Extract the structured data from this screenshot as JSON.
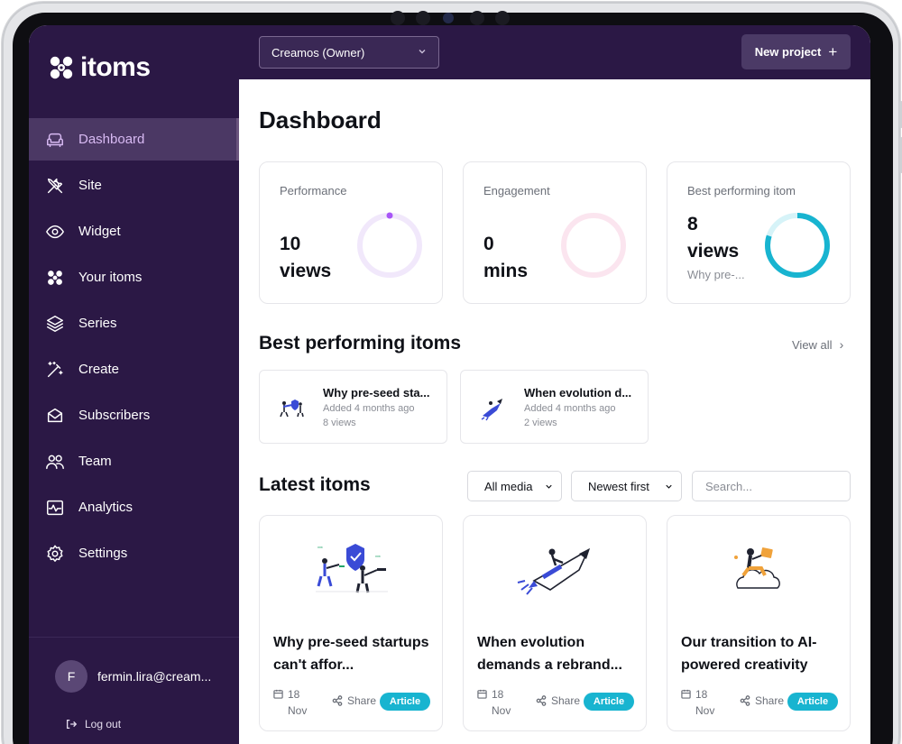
{
  "app": {
    "name": "itoms"
  },
  "topbar": {
    "org_select": "Creamos (Owner)",
    "new_project": "New project",
    "new_project_icon": "plus-icon"
  },
  "sidebar": {
    "items": [
      {
        "label": "Dashboard",
        "icon": "couch-icon",
        "active": true
      },
      {
        "label": "Site",
        "icon": "tools-icon"
      },
      {
        "label": "Widget",
        "icon": "eye-icon"
      },
      {
        "label": "Your itoms",
        "icon": "itoms-logo-icon"
      },
      {
        "label": "Series",
        "icon": "layers-icon"
      },
      {
        "label": "Create",
        "icon": "magic-wand-icon"
      },
      {
        "label": "Subscribers",
        "icon": "mail-icon"
      },
      {
        "label": "Team",
        "icon": "users-icon"
      },
      {
        "label": "Analytics",
        "icon": "pulse-chart-icon"
      },
      {
        "label": "Settings",
        "icon": "gear-icon"
      }
    ],
    "user": {
      "initial": "F",
      "email": "fermin.lira@cream...",
      "logout": "Log out"
    }
  },
  "main": {
    "title": "Dashboard",
    "stats": [
      {
        "label": "Performance",
        "value_line1": "10",
        "value_line2": "views",
        "ring_fraction": 0.0,
        "color": "#a855f7"
      },
      {
        "label": "Engagement",
        "value_line1": "0",
        "value_line2": "mins",
        "ring_fraction": 0.0,
        "color": "#f4c7dd"
      },
      {
        "label": "Best performing itom",
        "value_line1": "8",
        "value_line2": "views",
        "sub": "Why pre-...",
        "ring_fraction": 0.8,
        "color": "#18b4d0"
      }
    ],
    "best": {
      "title": "Best performing itoms",
      "view_all": "View all",
      "items": [
        {
          "title": "Why pre-seed sta...",
          "added": "Added 4 months ago",
          "views": "8 views"
        },
        {
          "title": "When evolution d...",
          "added": "Added 4 months ago",
          "views": "2 views"
        }
      ]
    },
    "latest": {
      "title": "Latest itoms",
      "media_filter": "All media",
      "sort": "Newest first",
      "search_placeholder": "Search...",
      "items": [
        {
          "title": "Why pre-seed startups can't affor...",
          "day": "18",
          "month": "Nov",
          "share": "Share",
          "badge": "Article"
        },
        {
          "title": "When evolution demands a rebrand...",
          "day": "18",
          "month": "Nov",
          "share": "Share",
          "badge": "Article"
        },
        {
          "title": "Our transition to AI-powered creativity",
          "day": "18",
          "month": "Nov",
          "share": "Share",
          "badge": "Article"
        }
      ]
    }
  }
}
